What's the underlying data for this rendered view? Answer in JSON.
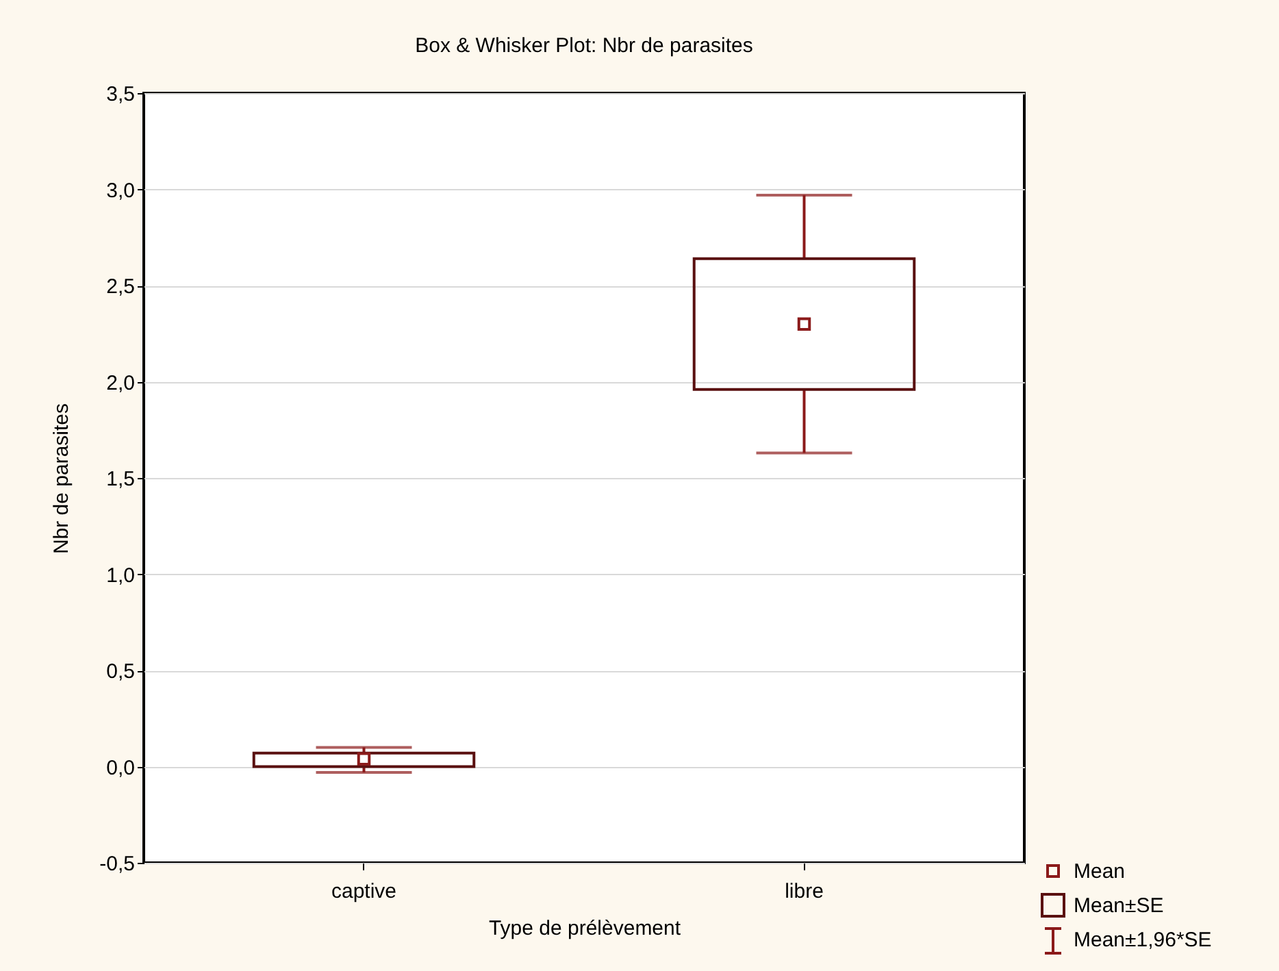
{
  "chart_data": {
    "type": "box",
    "title": "Box & Whisker Plot: Nbr de parasites",
    "xlabel": "Type de prélèvement",
    "ylabel": "Nbr de parasites",
    "categories": [
      "captive",
      "libre"
    ],
    "boxes": [
      {
        "low": -0.03,
        "q1": 0.0,
        "q3": 0.07,
        "high": 0.1,
        "mean": 0.04
      },
      {
        "low": 1.63,
        "q1": 1.96,
        "q3": 2.64,
        "high": 2.97,
        "mean": 2.3
      }
    ],
    "color": "#8b1a1a",
    "ylim": [
      -0.5,
      3.5
    ],
    "yticks": [
      {
        "value": -0.5,
        "label": "-0,5"
      },
      {
        "value": 0,
        "label": "0,0"
      },
      {
        "value": 0.5,
        "label": "0,5"
      },
      {
        "value": 1,
        "label": "1,0"
      },
      {
        "value": 1.5,
        "label": "1,5"
      },
      {
        "value": 2,
        "label": "2,0"
      },
      {
        "value": 2.5,
        "label": "2,5"
      },
      {
        "value": 3,
        "label": "3,0"
      },
      {
        "value": 3.5,
        "label": "3,5"
      }
    ],
    "grid": "y",
    "marker": "square",
    "annotations": [
      "Mean",
      "Mean±SE",
      "Mean±1,96*SE"
    ]
  }
}
